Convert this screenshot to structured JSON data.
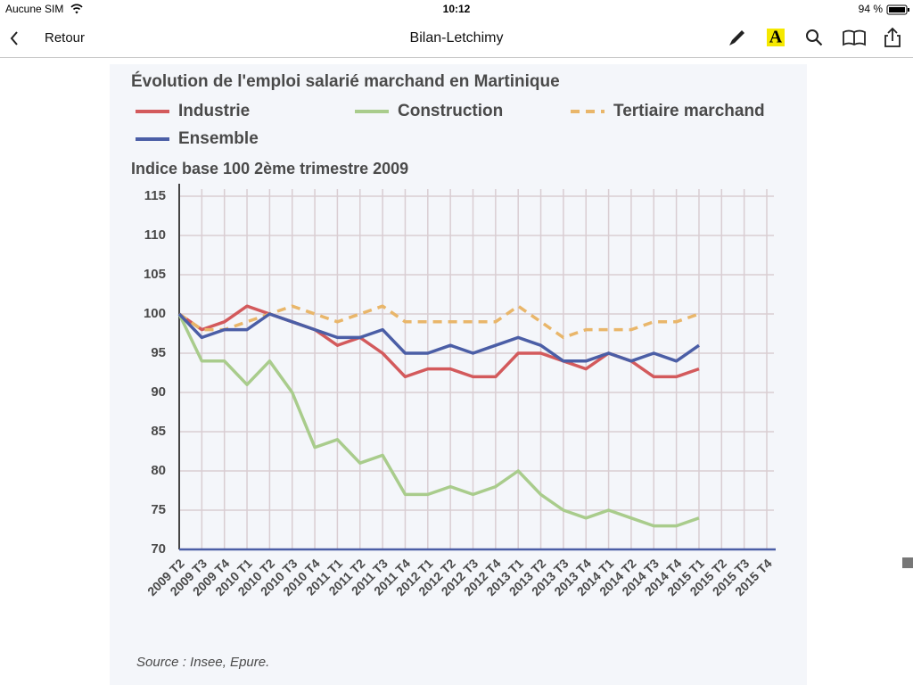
{
  "status_bar": {
    "carrier": "Aucune SIM",
    "time": "10:12",
    "battery": "94 %"
  },
  "nav_bar": {
    "back": "Retour",
    "title": "Bilan-Letchimy",
    "highlighter_label": "A"
  },
  "chart_data": {
    "type": "line",
    "title": "Évolution de l'emploi salarié marchand en Martinique",
    "subtitle": "Indice base 100 2ème trimestre 2009",
    "source": "Source : Insee, Epure.",
    "categories": [
      "2009 T2",
      "2009 T3",
      "2009 T4",
      "2010 T1",
      "2010 T2",
      "2010 T3",
      "2010 T4",
      "2011 T1",
      "2011 T2",
      "2011 T3",
      "2011 T4",
      "2012 T1",
      "2012 T2",
      "2012 T3",
      "2012 T4",
      "2013 T1",
      "2013 T2",
      "2013 T3",
      "2013 T4",
      "2014 T1",
      "2014 T2",
      "2014 T3",
      "2014 T4",
      "2015 T1",
      "2015 T2",
      "2015 T3",
      "2015 T4"
    ],
    "series": [
      {
        "name": "Industrie",
        "color": "#d35a5c",
        "style": "solid",
        "values": [
          100,
          98,
          99,
          101,
          100,
          99,
          98,
          96,
          97,
          95,
          92,
          93,
          93,
          92,
          92,
          95,
          95,
          94,
          93,
          95,
          94,
          92,
          92,
          93,
          null,
          null,
          null
        ]
      },
      {
        "name": "Construction",
        "color": "#a9cc8c",
        "style": "solid",
        "values": [
          100,
          94,
          94,
          91,
          94,
          90,
          83,
          84,
          81,
          82,
          77,
          77,
          78,
          77,
          78,
          80,
          77,
          75,
          74,
          75,
          74,
          73,
          73,
          74,
          null,
          null,
          null
        ]
      },
      {
        "name": "Tertiaire marchand",
        "color": "#e9b66a",
        "style": "dashed",
        "values": [
          100,
          98,
          98,
          99,
          100,
          101,
          100,
          99,
          100,
          101,
          99,
          99,
          99,
          99,
          99,
          101,
          99,
          97,
          98,
          98,
          98,
          99,
          99,
          100,
          null,
          null,
          null
        ]
      },
      {
        "name": "Ensemble",
        "color": "#4b5ea6",
        "style": "solid",
        "values": [
          100,
          97,
          98,
          98,
          100,
          99,
          98,
          97,
          97,
          98,
          95,
          95,
          96,
          95,
          96,
          97,
          96,
          94,
          94,
          95,
          94,
          95,
          94,
          96,
          null,
          null,
          null
        ]
      }
    ],
    "ylim": [
      70,
      115
    ],
    "yticks": [
      70,
      75,
      80,
      85,
      90,
      95,
      100,
      105,
      110,
      115
    ],
    "grid": true
  }
}
